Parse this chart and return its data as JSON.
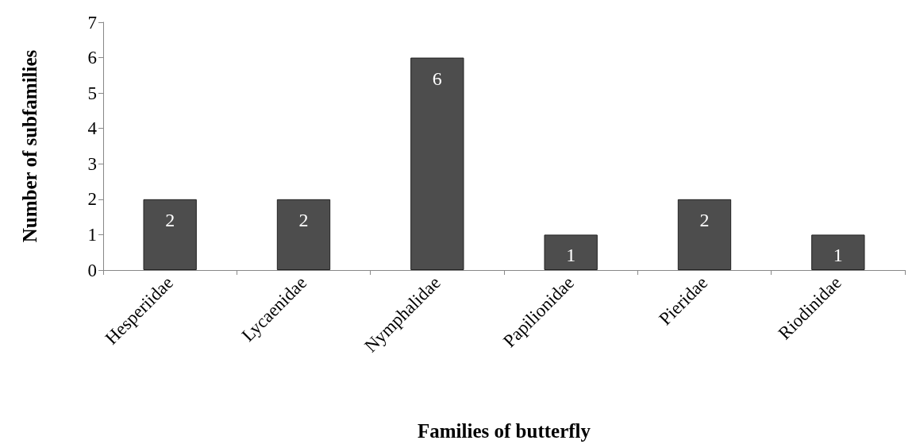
{
  "chart_data": {
    "type": "bar",
    "xlabel": "Families of butterfly",
    "ylabel": "Number of subfamilies",
    "categories": [
      "Hesperiidae",
      "Lycaenidae",
      "Nymphalidae",
      "Papilionidae",
      "Pieridae",
      "Riodinidae"
    ],
    "values": [
      2,
      2,
      6,
      1,
      2,
      1
    ],
    "color": "#4d4d4d",
    "ylim": [
      0,
      7
    ],
    "yticks": [
      0,
      1,
      2,
      3,
      4,
      5,
      6,
      7
    ],
    "grid": false,
    "data_labels": true
  }
}
